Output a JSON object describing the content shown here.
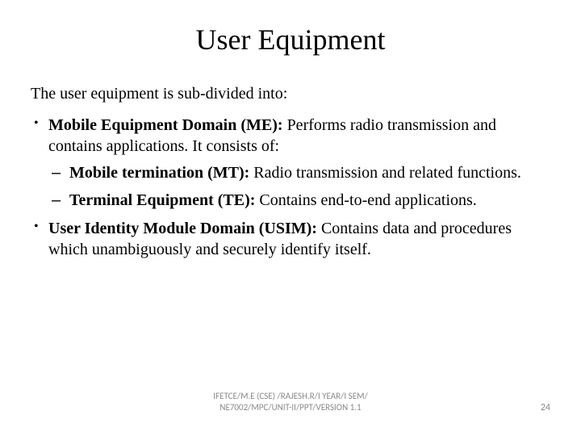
{
  "title": "User Equipment",
  "intro": "The user equipment is sub-divided into:",
  "bullets": {
    "b1": {
      "bold": "Mobile Equipment Domain (ME): ",
      "text": "Performs radio transmission and contains applications. It consists of:",
      "sub": {
        "s1": {
          "bold": "Mobile termination (MT): ",
          "text": "Radio transmission and related functions."
        },
        "s2": {
          "bold": "Terminal Equipment (TE): ",
          "text": "Contains end-to-end applications."
        }
      }
    },
    "b2": {
      "bold": "User Identity Module Domain (USIM): ",
      "text": "Contains data and procedures which unambiguously and securely identify itself."
    }
  },
  "footer": {
    "line1": "IFETCE/M.E (CSE) /RAJESH.R/I YEAR/I SEM/",
    "line2": "NE7002/MPC/UNIT-II/PPT/VERSION 1.1",
    "page": "24"
  },
  "style": {
    "bg": "#ffffff",
    "text_color": "#000000",
    "footer_color": "#8a8a8a",
    "title_fontsize": 36,
    "body_fontsize": 20,
    "footer_fontsize": 11,
    "page_fontsize": 12,
    "font_family_body": "Times New Roman",
    "font_family_footer": "Calibri"
  }
}
